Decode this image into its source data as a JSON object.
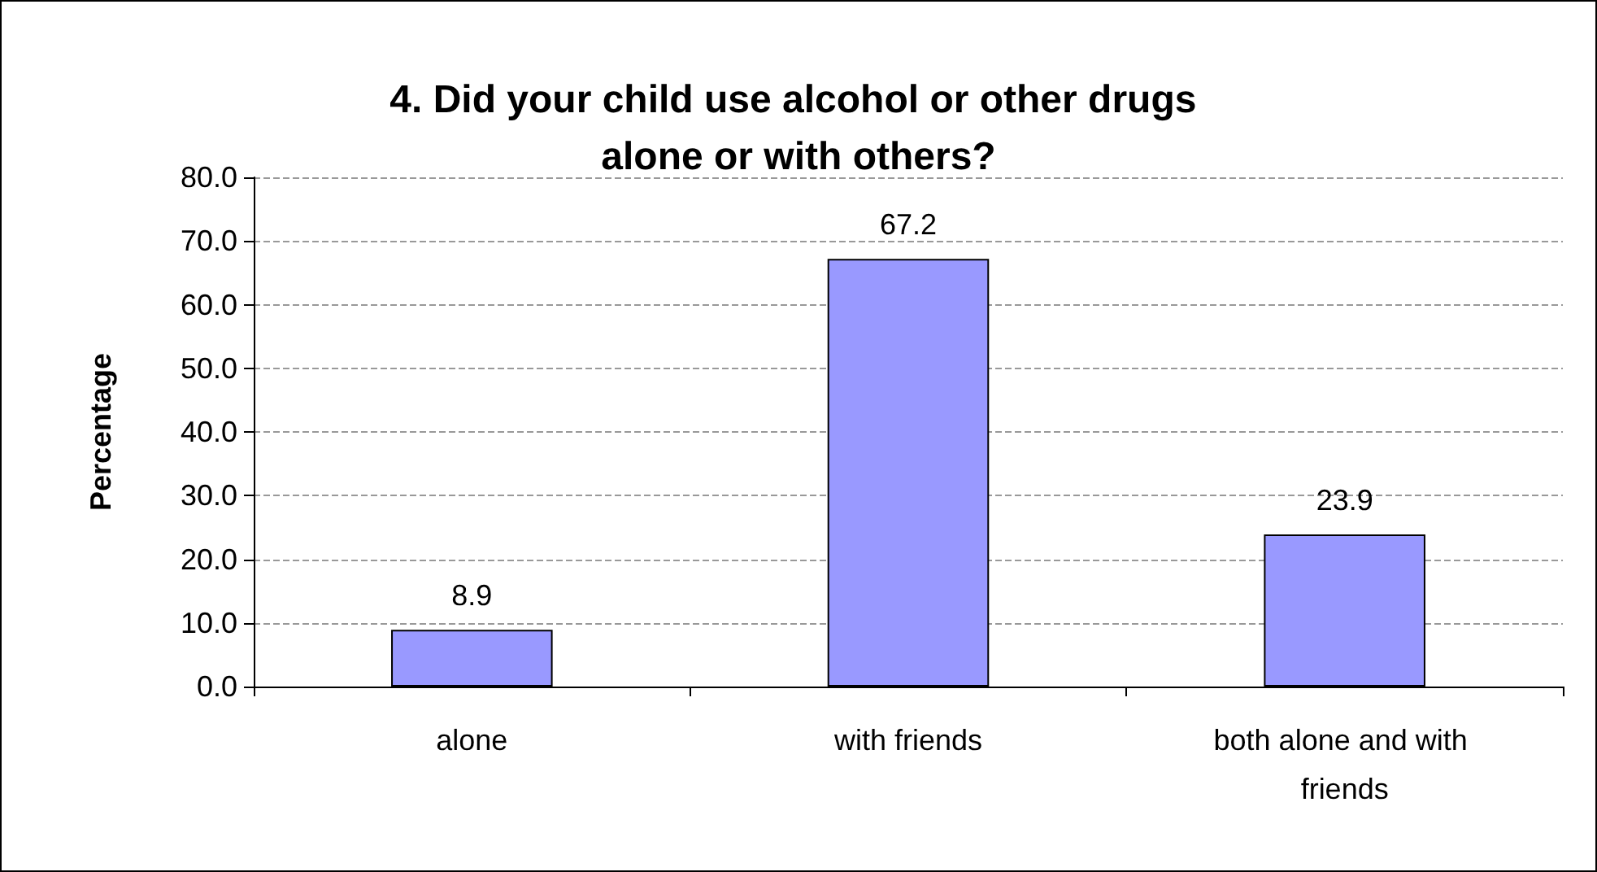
{
  "chart_data": {
    "type": "bar",
    "title": "4. Did your child use alcohol or other drugs alone or with others?",
    "ylabel": "Percentage",
    "categories": [
      "alone",
      "with friends",
      "both alone and with friends"
    ],
    "values": [
      8.9,
      67.2,
      23.9
    ],
    "color": "#9999ff",
    "data_labels": true,
    "ylim": [
      0,
      80
    ],
    "yticks": [
      {
        "value": 0,
        "label": "0.0"
      },
      {
        "value": 10,
        "label": "10.0"
      },
      {
        "value": 20,
        "label": "20.0"
      },
      {
        "value": 30,
        "label": "30.0"
      },
      {
        "value": 40,
        "label": "40.0"
      },
      {
        "value": 50,
        "label": "50.0"
      },
      {
        "value": 60,
        "label": "60.0"
      },
      {
        "value": 70,
        "label": "70.0"
      },
      {
        "value": 80,
        "label": "80.0"
      }
    ],
    "grid": "y"
  }
}
